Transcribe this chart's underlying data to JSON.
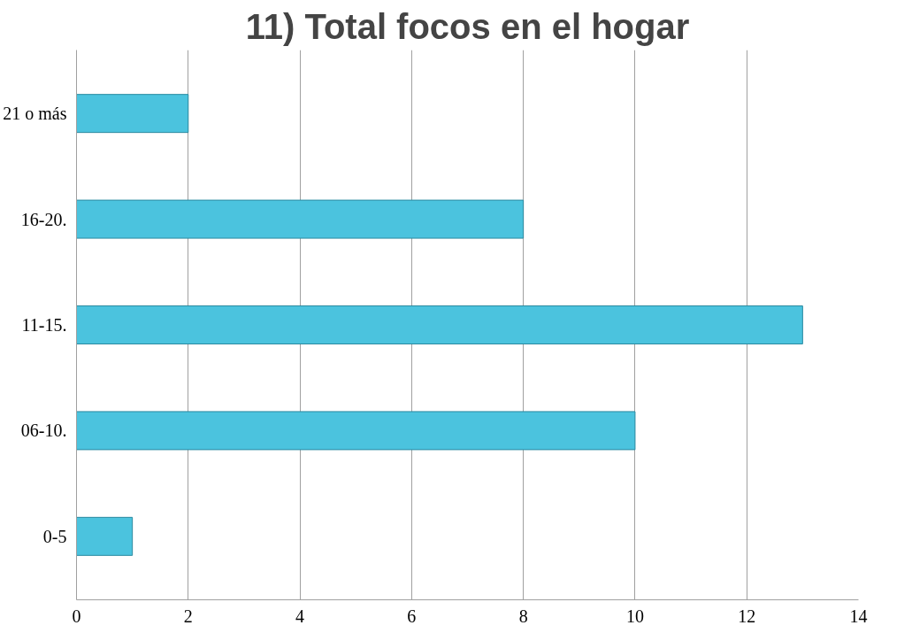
{
  "chart_data": {
    "type": "bar",
    "orientation": "horizontal",
    "title": "11) Total focos en el hogar",
    "categories": [
      "21 o más",
      "16-20.",
      "11-15.",
      "06-10.",
      "0-5"
    ],
    "values": [
      2,
      8,
      13,
      10,
      1
    ],
    "color": "#4bc3de",
    "xlim": [
      0,
      14
    ],
    "xticks": [
      0,
      2,
      4,
      6,
      8,
      10,
      12,
      14
    ],
    "grid": "x"
  }
}
